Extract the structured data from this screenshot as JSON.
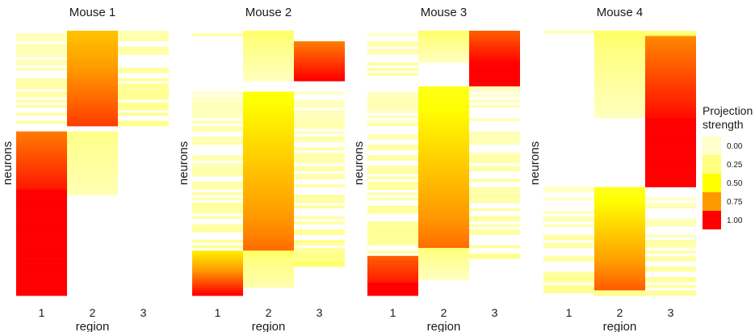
{
  "chart_data": {
    "type": "heatmap",
    "colors": {
      "low": "#ffffcc",
      "0.25": "#ffff80",
      "0.50": "#ffff00",
      "0.75": "#ff9900",
      "high": "#ff0000"
    },
    "legend": {
      "title_lines": [
        "Projection",
        "strength"
      ],
      "ticks": [
        "0.00",
        "0.25",
        "0.50",
        "0.75",
        "1.00"
      ],
      "placement": "right"
    },
    "panels": [
      {
        "title": "Mouse 1",
        "xlabel": "region",
        "ylabel": "neurons",
        "x_ticks": [
          "1",
          "2",
          "3"
        ],
        "neuron_count": 100,
        "blocks": [
          {
            "region": 1,
            "from": 0,
            "to": 36,
            "start": 0.0,
            "end": 0.1,
            "sparse": true
          },
          {
            "region": 2,
            "from": 0,
            "to": 36,
            "start": 0.65,
            "end": 0.9
          },
          {
            "region": 3,
            "from": 0,
            "to": 36,
            "start": 0.05,
            "end": 0.18,
            "sparse": true
          },
          {
            "region": 1,
            "from": 38,
            "to": 60,
            "start": 0.8,
            "end": 0.96
          },
          {
            "region": 1,
            "from": 60,
            "to": 100,
            "start": 1.0,
            "end": 1.0
          },
          {
            "region": 2,
            "from": 38,
            "to": 62,
            "start": 0.22,
            "end": 0.08
          }
        ]
      },
      {
        "title": "Mouse 2",
        "xlabel": "region",
        "ylabel": "neurons",
        "x_ticks": [
          "1",
          "2",
          "3"
        ],
        "neuron_count": 100,
        "blocks": [
          {
            "region": 1,
            "from": 0,
            "to": 4,
            "start": 0.05,
            "end": 0.15,
            "sparse": true
          },
          {
            "region": 2,
            "from": 0,
            "to": 19,
            "start": 0.3,
            "end": 0.05
          },
          {
            "region": 3,
            "from": 4,
            "to": 19,
            "start": 0.8,
            "end": 1.0
          },
          {
            "region": 1,
            "from": 23,
            "to": 83,
            "start": 0.0,
            "end": 0.12,
            "sparse": true
          },
          {
            "region": 2,
            "from": 23,
            "to": 83,
            "start": 0.48,
            "end": 0.82
          },
          {
            "region": 3,
            "from": 23,
            "to": 83,
            "start": 0.0,
            "end": 0.15,
            "sparse": true
          },
          {
            "region": 1,
            "from": 83,
            "to": 100,
            "start": 0.55,
            "end": 1.0
          },
          {
            "region": 2,
            "from": 83,
            "to": 97,
            "start": 0.3,
            "end": 0.1
          },
          {
            "region": 3,
            "from": 83,
            "to": 89,
            "start": 0.15,
            "end": 0.25,
            "sparse": true
          }
        ]
      },
      {
        "title": "Mouse 3",
        "xlabel": "region",
        "ylabel": "neurons",
        "x_ticks": [
          "1",
          "2",
          "3"
        ],
        "neuron_count": 100,
        "blocks": [
          {
            "region": 1,
            "from": 0,
            "to": 17,
            "start": 0.0,
            "end": 0.12,
            "sparse": true
          },
          {
            "region": 2,
            "from": 0,
            "to": 12,
            "start": 0.3,
            "end": 0.05
          },
          {
            "region": 3,
            "from": 0,
            "to": 13,
            "start": 0.85,
            "end": 1.0
          },
          {
            "region": 3,
            "from": 13,
            "to": 21,
            "start": 1.0,
            "end": 1.0
          },
          {
            "region": 1,
            "from": 21,
            "to": 85,
            "start": 0.0,
            "end": 0.15,
            "sparse": true
          },
          {
            "region": 2,
            "from": 21,
            "to": 82,
            "start": 0.45,
            "end": 0.82
          },
          {
            "region": 3,
            "from": 21,
            "to": 86,
            "start": 0.0,
            "end": 0.12,
            "sparse": true
          },
          {
            "region": 1,
            "from": 85,
            "to": 95,
            "start": 0.85,
            "end": 0.95
          },
          {
            "region": 1,
            "from": 95,
            "to": 100,
            "start": 1.0,
            "end": 1.0
          },
          {
            "region": 2,
            "from": 82,
            "to": 94,
            "start": 0.25,
            "end": 0.05
          }
        ]
      },
      {
        "title": "Mouse 4",
        "xlabel": "region",
        "ylabel": "neurons",
        "x_ticks": [
          "1",
          "2",
          "3"
        ],
        "neuron_count": 100,
        "blocks": [
          {
            "region": 1,
            "from": 0,
            "to": 1,
            "start": 0.1,
            "end": 0.1
          },
          {
            "region": 2,
            "from": 0,
            "to": 33,
            "start": 0.3,
            "end": 0.05
          },
          {
            "region": 3,
            "from": 0,
            "to": 2,
            "start": 0.2,
            "end": 0.3
          },
          {
            "region": 3,
            "from": 2,
            "to": 33,
            "start": 0.78,
            "end": 0.98
          },
          {
            "region": 3,
            "from": 33,
            "to": 59,
            "start": 1.0,
            "end": 1.0
          },
          {
            "region": 1,
            "from": 59,
            "to": 100,
            "start": 0.0,
            "end": 0.15,
            "sparse": true
          },
          {
            "region": 2,
            "from": 59,
            "to": 98,
            "start": 0.45,
            "end": 0.85
          },
          {
            "region": 2,
            "from": 98,
            "to": 100,
            "start": 0.2,
            "end": 0.2
          },
          {
            "region": 3,
            "from": 59,
            "to": 100,
            "start": 0.0,
            "end": 0.12,
            "sparse": true
          }
        ]
      }
    ]
  }
}
